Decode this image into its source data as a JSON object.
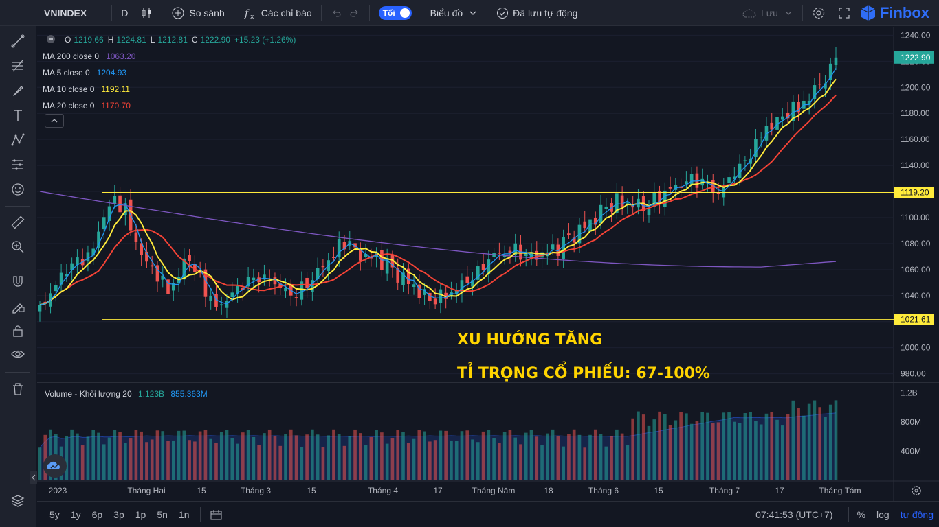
{
  "toolbar": {
    "symbol": "VNINDEX",
    "interval": "D",
    "compare_label": "So sánh",
    "indicators_label": "Các chỉ báo",
    "theme_toggle_label": "Tối",
    "chart_type_label": "Biểu đồ",
    "autosave_label": "Đã lưu tự động",
    "save_label": "Lưu",
    "brand": "Finbox"
  },
  "legend": {
    "ohlc": {
      "o_label": "O",
      "o": "1219.66",
      "h_label": "H",
      "h": "1224.81",
      "l_label": "L",
      "l": "1212.81",
      "c_label": "C",
      "c": "1222.90",
      "change": "+15.23 (+1.26%)"
    },
    "ma200": {
      "label": "MA 200 close 0",
      "value": "1063.20",
      "color": "#7e57c2"
    },
    "ma5": {
      "label": "MA 5 close 0",
      "value": "1204.93",
      "color": "#2196f3"
    },
    "ma10": {
      "label": "MA 10 close 0",
      "value": "1192.11",
      "color": "#ffeb3b"
    },
    "ma20": {
      "label": "MA 20 close 0",
      "value": "1170.70",
      "color": "#f44336"
    },
    "volume": {
      "label": "Volume - Khối lượng 20",
      "value": "1.123B",
      "ma": "855.363M"
    }
  },
  "price_axis": {
    "ticks": [
      "1240.00",
      "1220.00",
      "1200.00",
      "1180.00",
      "1160.00",
      "1140.00",
      "1120.00",
      "1100.00",
      "1080.00",
      "1060.00",
      "1040.00",
      "1020.00",
      "1000.00",
      "980.00"
    ],
    "last_price": "1222.90",
    "upper_line": "1119.20",
    "lower_line": "1021.61"
  },
  "volume_axis": {
    "ticks": [
      "1.2B",
      "800M",
      "400M"
    ]
  },
  "time_axis": {
    "ticks": [
      "2023",
      "Tháng Hai",
      "15",
      "Tháng 3",
      "15",
      "Tháng 4",
      "17",
      "Tháng Năm",
      "18",
      "Tháng 6",
      "15",
      "Tháng 7",
      "17",
      "Tháng Tám"
    ]
  },
  "annotations": {
    "trend": "XU HƯỚNG TĂNG",
    "weight": "TỈ TRỌNG CỔ PHIẾU: 67-100%"
  },
  "bottom": {
    "ranges": [
      "5y",
      "1y",
      "6p",
      "3p",
      "1p",
      "5n",
      "1n"
    ],
    "time": "07:41:53 (UTC+7)",
    "pct": "%",
    "log": "log",
    "auto": "tự động"
  },
  "colors": {
    "up": "#26a69a",
    "down": "#ef5350",
    "line": "#ffeb3b",
    "accent": "#2962ff"
  },
  "chart_data": {
    "type": "candlestick",
    "title": "VNINDEX",
    "horizontal_levels": [
      1119.2,
      1021.61
    ],
    "ylim": [
      975,
      1245
    ],
    "last": {
      "open": 1219.66,
      "high": 1224.81,
      "low": 1212.81,
      "close": 1222.9
    }
  }
}
